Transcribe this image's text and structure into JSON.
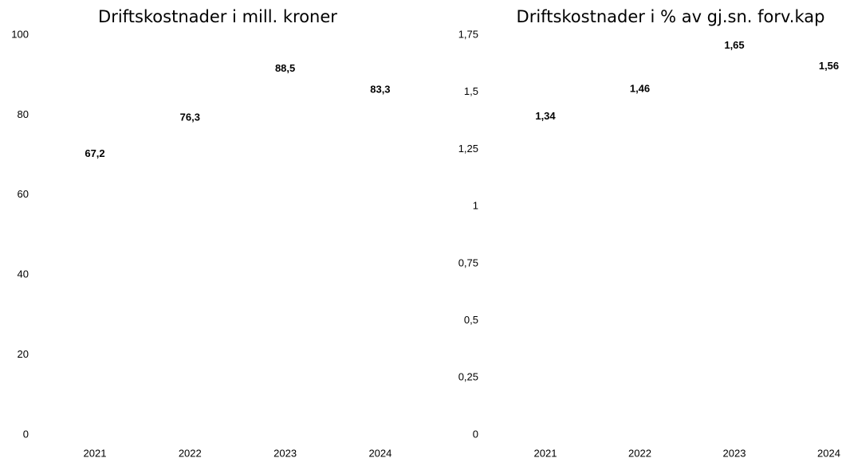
{
  "chart_data": [
    {
      "type": "bar",
      "title": "Driftskostnader i mill. kroner",
      "categories": [
        "2021",
        "2022",
        "2023",
        "2024"
      ],
      "values": [
        67.2,
        76.3,
        88.5,
        83.3
      ],
      "value_labels": [
        "67,2",
        "76,3",
        "88,5",
        "83,3"
      ],
      "color": "#ffffff",
      "ylim": [
        0,
        100
      ],
      "yticks": [
        0,
        20,
        40,
        60,
        80,
        100
      ],
      "grid": false
    },
    {
      "type": "bar",
      "title": "Driftskostnader i % av gj.sn. forv.kap",
      "categories": [
        "2021",
        "2022",
        "2023",
        "2024"
      ],
      "values": [
        1.34,
        1.46,
        1.65,
        1.56
      ],
      "value_labels": [
        "1,34",
        "1,46",
        "1,65",
        "1,56"
      ],
      "color": "#ffffff",
      "ylim": [
        0,
        1.75
      ],
      "yticks": [
        0,
        {
          "value": 0.25,
          "label": "0,25"
        },
        {
          "value": 0.5,
          "label": "0,5"
        },
        {
          "value": 0.75,
          "label": "0,75"
        },
        1,
        {
          "value": 1.25,
          "label": "1,25"
        },
        {
          "value": 1.5,
          "label": "1,5"
        },
        {
          "value": 1.75,
          "label": "1,75"
        }
      ],
      "grid": false
    }
  ]
}
